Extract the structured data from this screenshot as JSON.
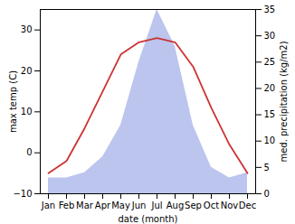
{
  "chart_data": {
    "type": "line",
    "xlabel": "date (month)",
    "ylabel": "max temp (C)",
    "y2label": "med. precipitation (kg/m2)",
    "categories": [
      "Jan",
      "Feb",
      "Mar",
      "Apr",
      "May",
      "Jun",
      "Jul",
      "Aug",
      "Sep",
      "Oct",
      "Nov",
      "Dec"
    ],
    "series": [
      {
        "type": "area",
        "axis": "y2",
        "color": "#bbc5ee",
        "values": [
          3,
          3,
          4,
          7,
          13,
          25,
          35,
          28,
          13,
          5,
          3,
          4
        ]
      },
      {
        "type": "line",
        "color": "#cc3333",
        "values": [
          -5,
          -2,
          6,
          15,
          24,
          27,
          28,
          27,
          21,
          11,
          2,
          -5
        ]
      }
    ],
    "ylim": [
      -10,
      35
    ],
    "yticks": [
      -10,
      0,
      10,
      20,
      30
    ],
    "y2lim": [
      0,
      35
    ],
    "y2ticks": [
      0,
      5,
      10,
      15,
      20,
      25,
      30,
      35
    ],
    "grid": false
  }
}
